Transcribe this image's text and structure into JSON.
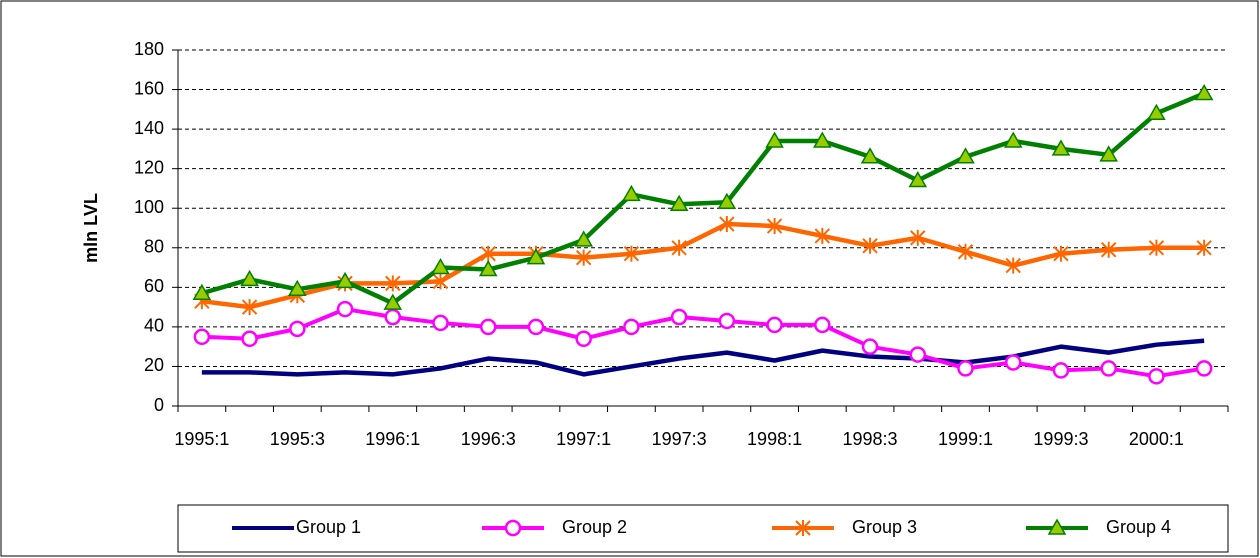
{
  "chart_data": {
    "type": "line",
    "y_label": "mln LVL",
    "categories": [
      "1995:1",
      null,
      "1995:3",
      null,
      "1996:1",
      null,
      "1996:3",
      null,
      "1997:1",
      null,
      "1997:3",
      null,
      "1998:1",
      null,
      "1998:3",
      null,
      "1999:1",
      null,
      "1999:3",
      null,
      "2000:1",
      null
    ],
    "series": [
      {
        "name": "Group 1",
        "color": "#000080",
        "marker": "none",
        "values": [
          17,
          17,
          16,
          17,
          16,
          19,
          24,
          22,
          16,
          20,
          24,
          27,
          23,
          28,
          25,
          24,
          22,
          25,
          30,
          27,
          31,
          33
        ]
      },
      {
        "name": "Group 2",
        "color": "#ff00ff",
        "marker": "circle",
        "values": [
          35,
          34,
          39,
          49,
          45,
          42,
          40,
          40,
          34,
          40,
          45,
          43,
          41,
          41,
          30,
          26,
          19,
          22,
          18,
          19,
          15,
          19
        ]
      },
      {
        "name": "Group 3",
        "color": "#ff6600",
        "marker": "asterisk",
        "values": [
          53,
          50,
          56,
          62,
          62,
          63,
          77,
          77,
          75,
          77,
          80,
          92,
          91,
          86,
          81,
          85,
          78,
          71,
          77,
          79,
          80,
          80
        ]
      },
      {
        "name": "Group 4",
        "color": "#008000",
        "marker": "triangle",
        "marker_fill": "#99cc00",
        "values": [
          57,
          64,
          59,
          63,
          52,
          70,
          69,
          75,
          84,
          107,
          102,
          103,
          134,
          134,
          126,
          114,
          126,
          134,
          130,
          127,
          148,
          158
        ]
      }
    ],
    "ylim": [
      0,
      180
    ],
    "yticks": [
      0,
      20,
      40,
      60,
      80,
      100,
      120,
      140,
      160,
      180
    ],
    "grid": true,
    "legend": "bottom"
  }
}
